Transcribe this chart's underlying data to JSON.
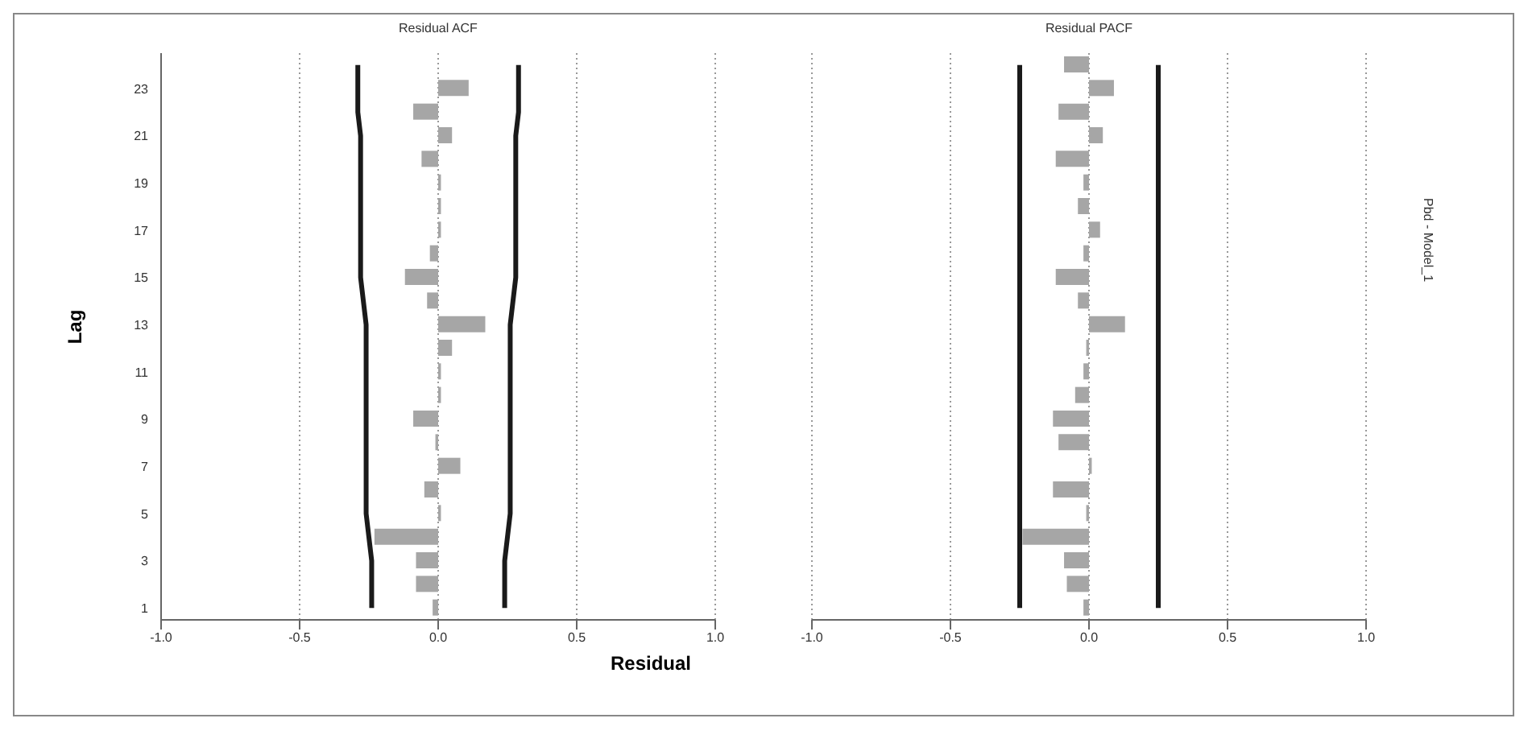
{
  "chart_data": [
    {
      "type": "bar",
      "orientation": "horizontal",
      "title": "Residual ACF",
      "xlabel": "Residual",
      "ylabel": "Lag",
      "categories": [
        null,
        "23",
        null,
        "21",
        null,
        "19",
        null,
        "17",
        null,
        "15",
        null,
        "13",
        null,
        "11",
        null,
        "9",
        null,
        "7",
        null,
        "5",
        null,
        "3",
        null,
        "1"
      ],
      "series": [
        {
          "color": "#a6a6a6",
          "values": [
            0,
            0.11,
            -0.09,
            0.05,
            -0.06,
            0.01,
            0.01,
            0.01,
            -0.03,
            -0.12,
            -0.04,
            0.17,
            0.05,
            0.01,
            0.01,
            -0.09,
            -0.01,
            0.08,
            -0.05,
            0.01,
            -0.23,
            -0.08,
            -0.08,
            -0.02
          ]
        },
        {
          "type": "line",
          "color": "#1a1a1a",
          "values": [
            -0.29,
            -0.29,
            -0.29,
            -0.28,
            -0.28,
            -0.28,
            -0.28,
            -0.28,
            -0.28,
            -0.28,
            -0.27,
            -0.26,
            -0.26,
            -0.26,
            -0.26,
            -0.26,
            -0.26,
            -0.26,
            -0.26,
            -0.26,
            -0.25,
            -0.24,
            -0.24,
            -0.24
          ]
        },
        {
          "type": "line",
          "color": "#1a1a1a",
          "values": [
            0.29,
            0.29,
            0.29,
            0.28,
            0.28,
            0.28,
            0.28,
            0.28,
            0.28,
            0.28,
            0.27,
            0.26,
            0.26,
            0.26,
            0.26,
            0.26,
            0.26,
            0.26,
            0.26,
            0.26,
            0.25,
            0.24,
            0.24,
            0.24
          ]
        }
      ],
      "xlim": [
        -1,
        1
      ],
      "xticks": [
        {
          "value": -1,
          "label": "-1.0"
        },
        {
          "value": -0.5,
          "label": "-0.5"
        },
        {
          "value": 0,
          "label": "0.0"
        },
        {
          "value": 0.5,
          "label": "0.5"
        },
        {
          "value": 1,
          "label": "1.0"
        }
      ],
      "grid": "x",
      "marker": "none",
      "line_style": "solid"
    },
    {
      "type": "bar",
      "orientation": "horizontal",
      "title": "Residual PACF",
      "annotations": [
        "Pbd - Model_1"
      ],
      "categories": [
        null,
        "23",
        null,
        "21",
        null,
        "19",
        null,
        "17",
        null,
        "15",
        null,
        "13",
        null,
        "11",
        null,
        "9",
        null,
        "7",
        null,
        "5",
        null,
        "3",
        null,
        "1"
      ],
      "series": [
        {
          "color": "#a6a6a6",
          "values": [
            -0.09,
            0.09,
            -0.11,
            0.05,
            -0.12,
            -0.02,
            -0.04,
            0.04,
            -0.02,
            -0.12,
            -0.04,
            0.13,
            -0.01,
            -0.02,
            -0.05,
            -0.13,
            -0.11,
            0.01,
            -0.13,
            -0.01,
            -0.24,
            -0.09,
            -0.08,
            -0.02
          ]
        },
        {
          "type": "line",
          "color": "#1a1a1a",
          "values": [
            -0.25,
            -0.25,
            -0.25,
            -0.25,
            -0.25,
            -0.25,
            -0.25,
            -0.25,
            -0.25,
            -0.25,
            -0.25,
            -0.25,
            -0.25,
            -0.25,
            -0.25,
            -0.25,
            -0.25,
            -0.25,
            -0.25,
            -0.25,
            -0.25,
            -0.25,
            -0.25,
            -0.25
          ]
        },
        {
          "type": "line",
          "color": "#1a1a1a",
          "values": [
            0.25,
            0.25,
            0.25,
            0.25,
            0.25,
            0.25,
            0.25,
            0.25,
            0.25,
            0.25,
            0.25,
            0.25,
            0.25,
            0.25,
            0.25,
            0.25,
            0.25,
            0.25,
            0.25,
            0.25,
            0.25,
            0.25,
            0.25,
            0.25
          ]
        }
      ],
      "xlim": [
        -1,
        1
      ],
      "xticks": [
        {
          "value": -1,
          "label": "-1.0"
        },
        {
          "value": -0.5,
          "label": "-0.5"
        },
        {
          "value": 0,
          "label": "0.0"
        },
        {
          "value": 0.5,
          "label": "0.5"
        },
        {
          "value": 1,
          "label": "1.0"
        }
      ],
      "grid": "x",
      "marker": "none",
      "line_style": "solid",
      "tick_labels": "x"
    }
  ]
}
